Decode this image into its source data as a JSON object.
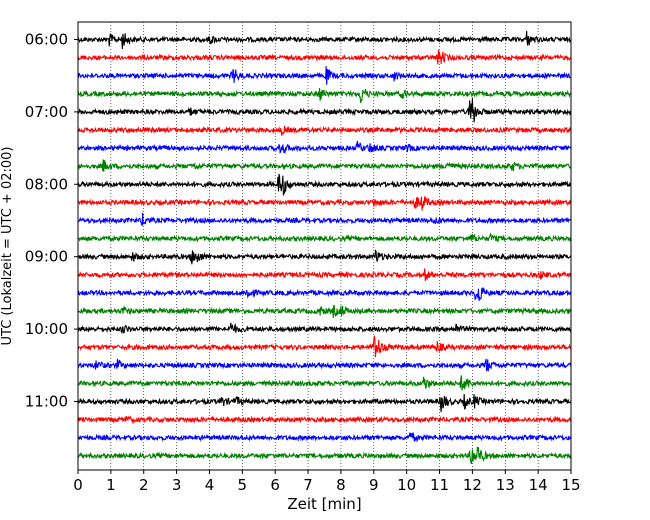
{
  "chart_data": {
    "type": "line",
    "title": "",
    "xlabel": "Zeit  [min]",
    "ylabel": "UTC (Lokalzeit = UTC + 02:00)",
    "xlim": [
      0,
      15
    ],
    "x_ticks": [
      "0",
      "1",
      "2",
      "3",
      "4",
      "5",
      "6",
      "7",
      "8",
      "9",
      "10",
      "11",
      "12",
      "13",
      "14",
      "15"
    ],
    "y_ticks": [
      {
        "label": "06:00",
        "row": 0
      },
      {
        "label": "07:00",
        "row": 4
      },
      {
        "label": "08:00",
        "row": 8
      },
      {
        "label": "09:00",
        "row": 12
      },
      {
        "label": "10:00",
        "row": 16
      },
      {
        "label": "11:00",
        "row": 20
      }
    ],
    "grid": "vertical dotted lines at each minute",
    "row_minutes": 15,
    "color_cycle": [
      "#000000",
      "#ff0000",
      "#0000ff",
      "#008000"
    ],
    "rows": [
      {
        "start": "06:00",
        "events": [
          [
            0.95,
            0.6
          ],
          [
            1.35,
            0.9
          ],
          [
            4.0,
            0.5
          ],
          [
            13.65,
            0.8
          ]
        ]
      },
      {
        "start": "06:15",
        "events": [
          [
            10.95,
            0.7
          ],
          [
            11.0,
            0.5
          ]
        ]
      },
      {
        "start": "06:30",
        "events": [
          [
            4.7,
            1.0
          ],
          [
            7.55,
            0.9
          ],
          [
            9.6,
            0.5
          ]
        ]
      },
      {
        "start": "06:45",
        "events": [
          [
            7.35,
            0.7
          ],
          [
            8.6,
            1.1
          ],
          [
            9.85,
            0.5
          ]
        ]
      },
      {
        "start": "07:00",
        "events": [
          [
            3.4,
            0.4
          ],
          [
            11.9,
            1.4
          ],
          [
            12.0,
            1.0
          ]
        ]
      },
      {
        "start": "07:15",
        "events": [
          [
            6.2,
            0.4
          ]
        ]
      },
      {
        "start": "07:30",
        "events": [
          [
            6.15,
            0.9
          ],
          [
            8.5,
            0.6
          ],
          [
            8.85,
            0.6
          ],
          [
            10.0,
            0.4
          ]
        ]
      },
      {
        "start": "07:45",
        "events": [
          [
            0.75,
            0.7
          ],
          [
            3.5,
            0.4
          ],
          [
            11.2,
            0.6
          ],
          [
            13.2,
            0.5
          ]
        ]
      },
      {
        "start": "08:00",
        "events": [
          [
            6.1,
            1.4
          ],
          [
            6.2,
            1.0
          ]
        ]
      },
      {
        "start": "08:15",
        "events": [
          [
            10.25,
            0.7
          ],
          [
            10.45,
            0.9
          ],
          [
            9.0,
            0.4
          ]
        ]
      },
      {
        "start": "08:30",
        "events": [
          [
            1.95,
            0.7
          ],
          [
            10.85,
            0.4
          ]
        ]
      },
      {
        "start": "08:45",
        "events": [
          [
            11.95,
            0.5
          ],
          [
            12.55,
            0.4
          ]
        ]
      },
      {
        "start": "09:00",
        "events": [
          [
            1.65,
            0.5
          ],
          [
            3.45,
            0.8
          ],
          [
            3.6,
            0.6
          ],
          [
            9.05,
            0.8
          ]
        ]
      },
      {
        "start": "09:15",
        "events": [
          [
            10.55,
            0.6
          ],
          [
            14.05,
            0.4
          ]
        ]
      },
      {
        "start": "09:30",
        "events": [
          [
            5.15,
            0.8
          ],
          [
            12.1,
            1.1
          ],
          [
            12.15,
            0.8
          ]
        ]
      },
      {
        "start": "09:45",
        "events": [
          [
            7.3,
            0.6
          ],
          [
            7.75,
            0.6
          ],
          [
            8.0,
            0.5
          ],
          [
            1.35,
            0.4
          ]
        ]
      },
      {
        "start": "10:00",
        "events": [
          [
            1.35,
            0.5
          ],
          [
            4.65,
            0.7
          ],
          [
            11.5,
            0.5
          ]
        ]
      },
      {
        "start": "10:15",
        "events": [
          [
            9.0,
            1.3
          ],
          [
            9.05,
            0.9
          ],
          [
            10.9,
            0.7
          ]
        ]
      },
      {
        "start": "10:30",
        "events": [
          [
            0.55,
            0.6
          ],
          [
            1.2,
            0.5
          ],
          [
            12.4,
            0.9
          ]
        ]
      },
      {
        "start": "10:45",
        "events": [
          [
            10.5,
            0.9
          ],
          [
            11.65,
            0.8
          ],
          [
            11.75,
            0.6
          ]
        ]
      },
      {
        "start": "11:00",
        "events": [
          [
            4.35,
            0.6
          ],
          [
            4.8,
            0.5
          ],
          [
            11.05,
            1.3
          ],
          [
            11.75,
            0.7
          ],
          [
            12.05,
            0.6
          ]
        ]
      },
      {
        "start": "11:15",
        "events": [
          [
            1.45,
            0.3
          ]
        ]
      },
      {
        "start": "11:30",
        "events": [
          [
            10.1,
            0.6
          ]
        ]
      },
      {
        "start": "11:45",
        "events": [
          [
            11.95,
            1.4
          ],
          [
            12.15,
            1.0
          ]
        ]
      }
    ]
  }
}
